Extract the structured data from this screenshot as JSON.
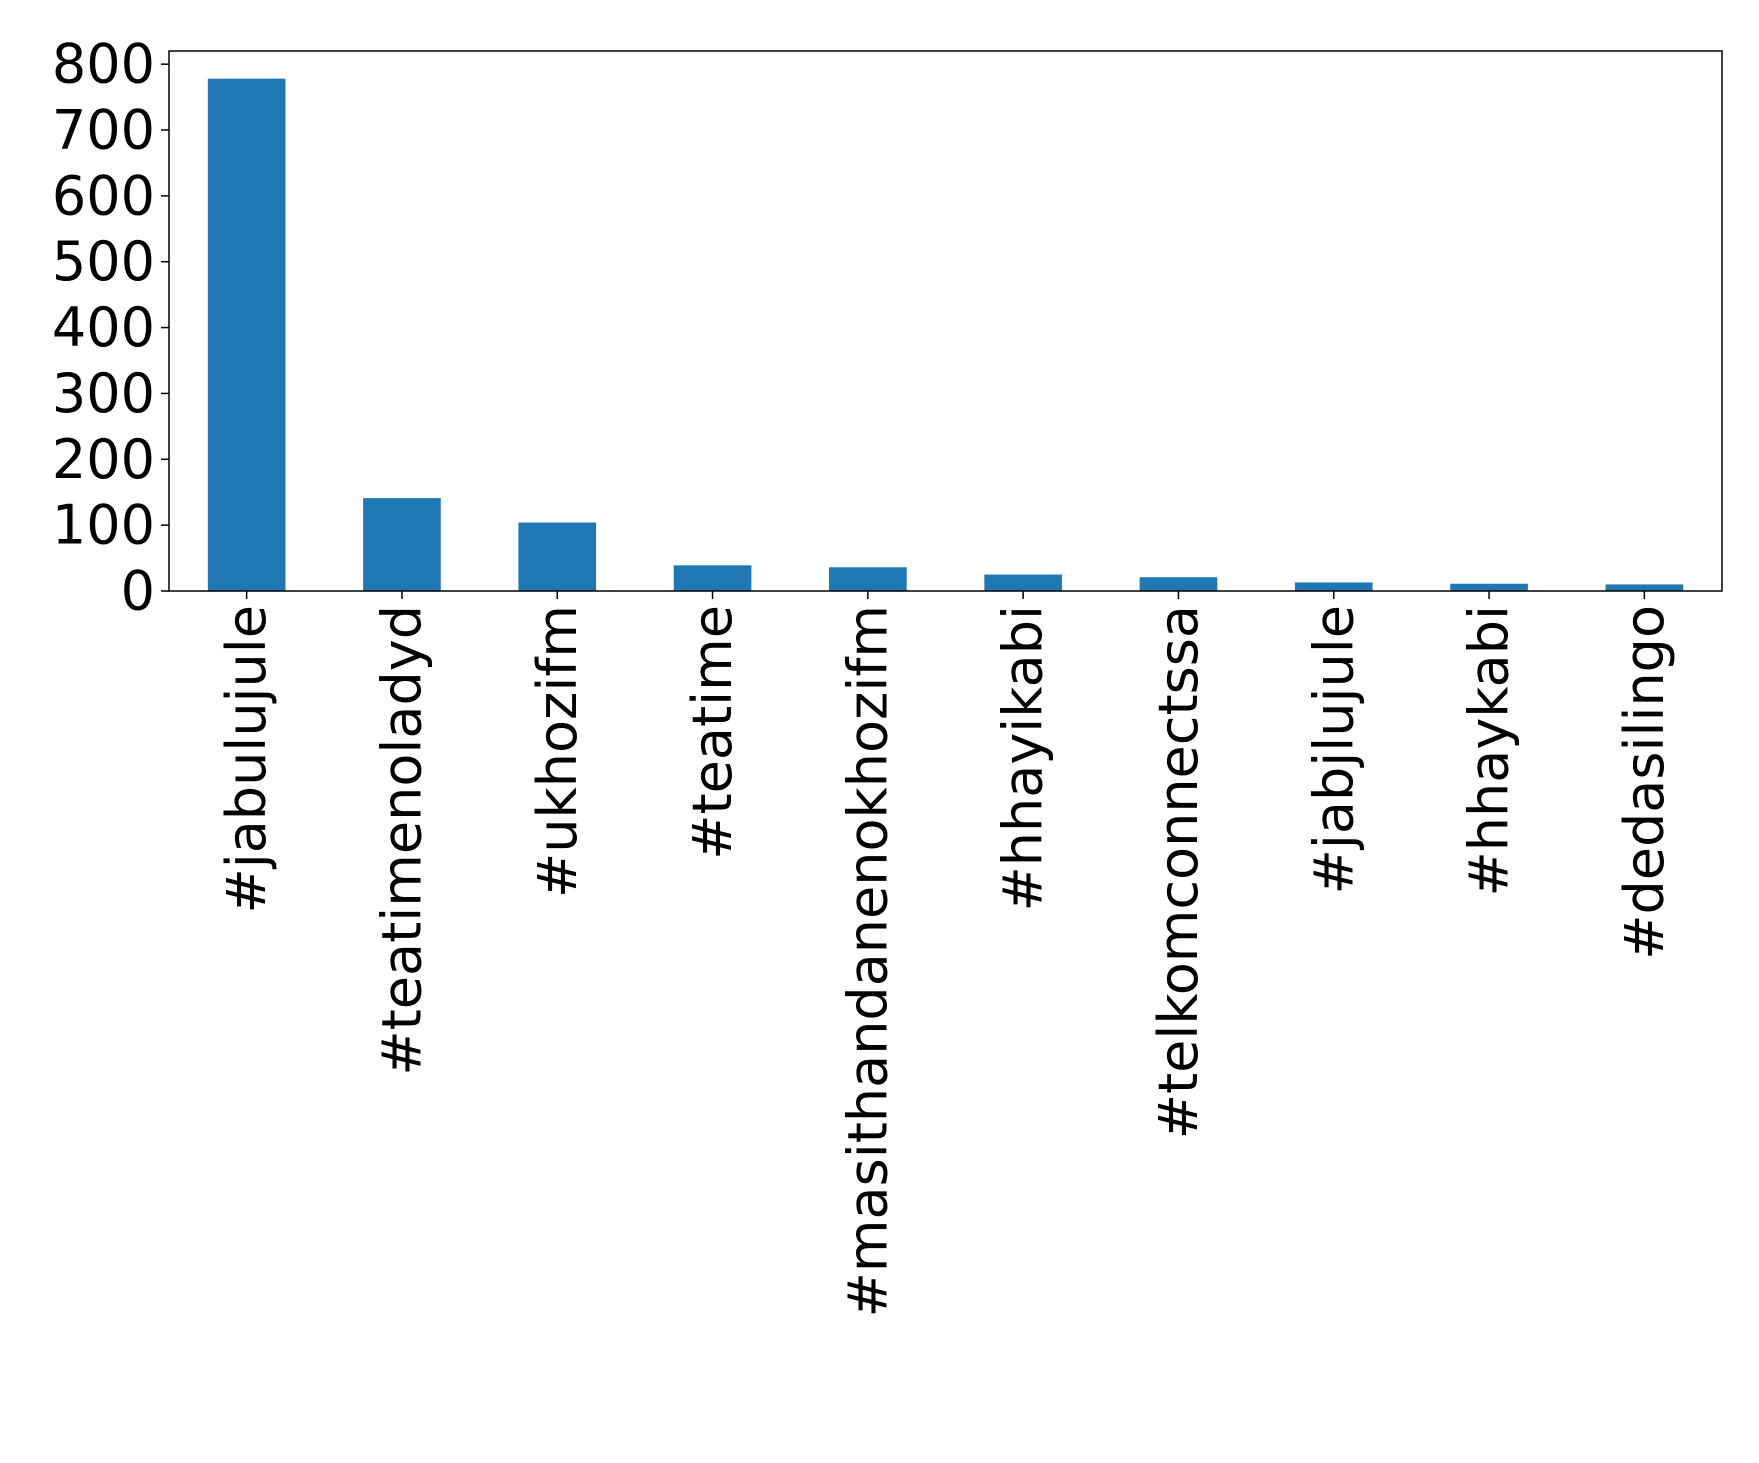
{
  "chart_data": {
    "type": "bar",
    "title": "",
    "xlabel": "",
    "ylabel": "",
    "categories": [
      "#jabulujule",
      "#teatimenoladyd",
      "#ukhozifm",
      "#teatime",
      "#masithandanenokhozifm",
      "#hhayikabi",
      "#telkomconnectssa",
      "#jabjlujule",
      "#hhaykabi",
      "#dedasilingo"
    ],
    "values": [
      778,
      141,
      104,
      39,
      36,
      25,
      21,
      13,
      11,
      10
    ],
    "ylim": [
      0,
      820
    ],
    "yticks": [
      "0",
      "100",
      "200",
      "300",
      "400",
      "500",
      "600",
      "700",
      "800"
    ],
    "grid": false,
    "legend": "none",
    "bar_color": "#1f77b4"
  }
}
